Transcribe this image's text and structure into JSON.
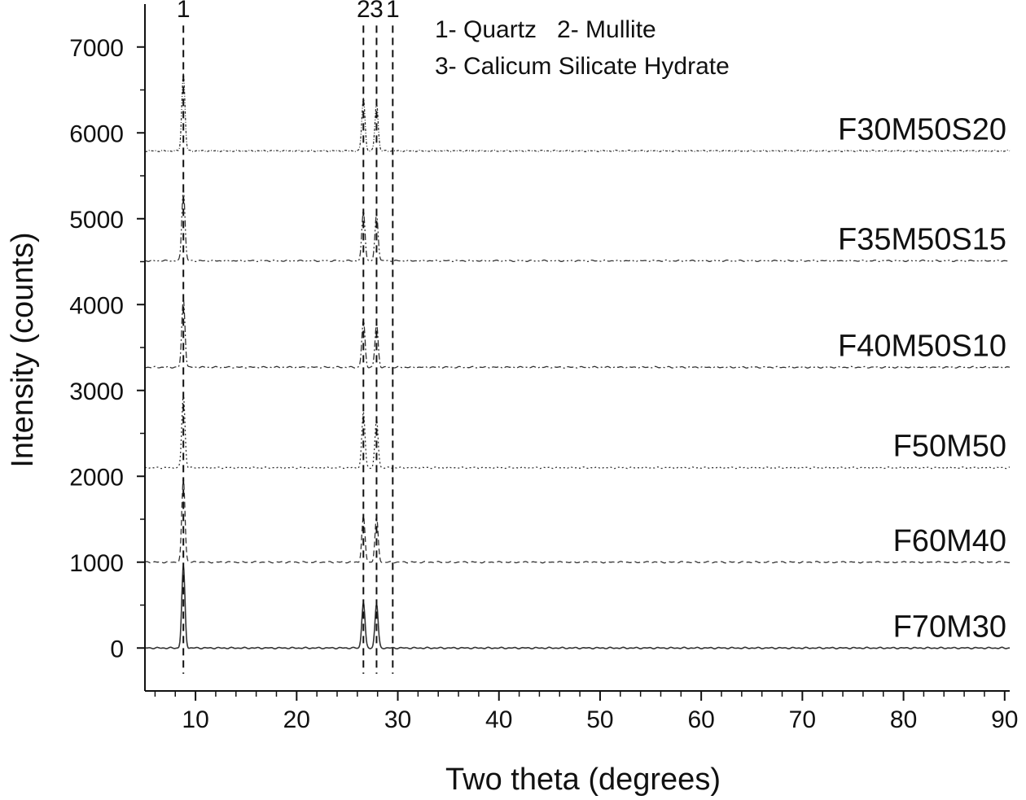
{
  "chart_data": {
    "type": "line",
    "xlabel": "Two theta (degrees)",
    "ylabel": "Intensity (counts)",
    "xlim": [
      5,
      90.5
    ],
    "ylim": [
      -500,
      7500
    ],
    "xticks": [
      10,
      20,
      30,
      40,
      50,
      60,
      70,
      80,
      90
    ],
    "xtick_labels": [
      "10",
      "20",
      "30",
      "40",
      "50",
      "60",
      "70",
      "80",
      "90"
    ],
    "yticks": [
      0,
      1000,
      2000,
      3000,
      4000,
      5000,
      6000,
      7000
    ],
    "ytick_labels": [
      "0",
      "1000",
      "2000",
      "3000",
      "4000",
      "5000",
      "6000",
      "7000"
    ],
    "grid": false,
    "line_color": "#333333",
    "peak_markers": [
      {
        "label": "1",
        "x": 8.8
      },
      {
        "label": "2",
        "x": 26.6
      },
      {
        "label": "3",
        "x": 27.9
      },
      {
        "label": "1",
        "x": 29.5
      }
    ],
    "legend_lines": [
      "1- Quartz   2- Mullite",
      "3- Calicum Silicate Hydrate"
    ],
    "series": [
      {
        "name": "F70M30",
        "baseline": 0,
        "dash": "solid",
        "peaks": [
          {
            "x": 8.8,
            "height": 950
          },
          {
            "x": 26.6,
            "height": 530
          },
          {
            "x": 27.9,
            "height": 510
          }
        ]
      },
      {
        "name": "F60M40",
        "baseline": 1000,
        "dash": "dashed",
        "peaks": [
          {
            "x": 8.8,
            "height": 980
          },
          {
            "x": 26.6,
            "height": 530
          },
          {
            "x": 27.9,
            "height": 520
          }
        ]
      },
      {
        "name": "F50M50",
        "baseline": 2100,
        "dash": "dotted",
        "peaks": [
          {
            "x": 8.8,
            "height": 850
          },
          {
            "x": 26.6,
            "height": 650
          },
          {
            "x": 27.9,
            "height": 560
          }
        ]
      },
      {
        "name": "F40M50S10",
        "baseline": 3270,
        "dash": "dashdot",
        "peaks": [
          {
            "x": 8.8,
            "height": 800
          },
          {
            "x": 26.6,
            "height": 550
          },
          {
            "x": 27.9,
            "height": 500
          }
        ]
      },
      {
        "name": "F35M50S15",
        "baseline": 4510,
        "dash": "dashdotdot",
        "peaks": [
          {
            "x": 8.8,
            "height": 840
          },
          {
            "x": 26.6,
            "height": 580
          },
          {
            "x": 27.9,
            "height": 540
          }
        ]
      },
      {
        "name": "F30M50S20",
        "baseline": 5790,
        "dash": "shortdot",
        "peaks": [
          {
            "x": 8.8,
            "height": 900
          },
          {
            "x": 26.6,
            "height": 620
          },
          {
            "x": 27.9,
            "height": 560
          }
        ]
      }
    ]
  }
}
